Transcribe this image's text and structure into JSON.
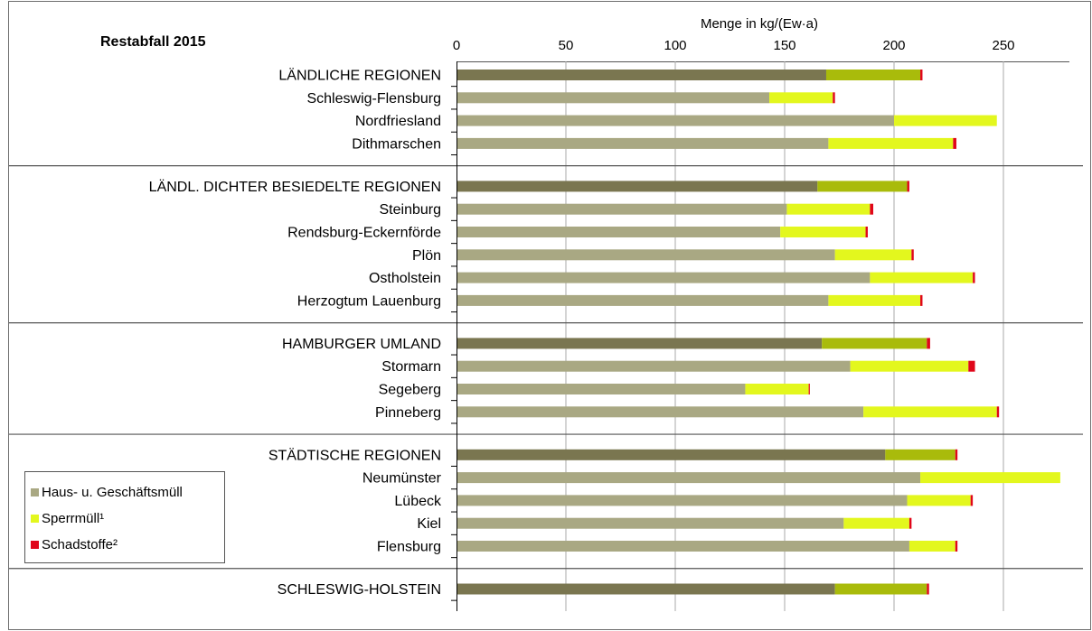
{
  "chart_data": {
    "type": "bar",
    "orientation": "horizontal",
    "stacked": true,
    "title": "Restabfall 2015",
    "xlabel": "Menge in kg/(Ew·a)",
    "xlim": [
      0,
      280
    ],
    "x_ticks": [
      0,
      50,
      100,
      150,
      200,
      250
    ],
    "grid": "vertical",
    "legend_position": "bottom-left",
    "legend": [
      {
        "name": "Haus- u. Geschäftsmüll",
        "color": "#a9a883"
      },
      {
        "name": "Sperrmüll¹",
        "color": "#e3f71e"
      },
      {
        "name": "Schadstoffe²",
        "color": "#e0061a"
      }
    ],
    "colors": {
      "aggregate_haus": "#7a7650",
      "aggregate_sperr": "#a9bb0b",
      "haus": "#a9a883",
      "sperr": "#e3f71e",
      "schad": "#e0061a"
    },
    "groups": [
      {
        "name": "LÄNDLICHE REGIONEN",
        "rows": [
          {
            "label": "LÄNDLICHE REGIONEN",
            "aggregate": true,
            "values": [
              169,
              43,
              1
            ]
          },
          {
            "label": "Schleswig-Flensburg",
            "aggregate": false,
            "values": [
              143,
              29,
              1
            ]
          },
          {
            "label": "Nordfriesland",
            "aggregate": false,
            "values": [
              200,
              47,
              0
            ]
          },
          {
            "label": "Dithmarschen",
            "aggregate": false,
            "values": [
              170,
              57,
              1.5
            ]
          }
        ]
      },
      {
        "name": "LÄNDL. DICHTER BESIEDELTE REGIONEN",
        "rows": [
          {
            "label": "LÄNDL. DICHTER BESIEDELTE REGIONEN",
            "aggregate": true,
            "values": [
              165,
              41,
              1
            ]
          },
          {
            "label": "Steinburg",
            "aggregate": false,
            "values": [
              151,
              38,
              1.5
            ]
          },
          {
            "label": "Rendsburg-Eckernförde",
            "aggregate": false,
            "values": [
              148,
              39,
              1
            ]
          },
          {
            "label": "Plön",
            "aggregate": false,
            "values": [
              173,
              35,
              1
            ]
          },
          {
            "label": "Ostholstein",
            "aggregate": false,
            "values": [
              189,
              47,
              1
            ]
          },
          {
            "label": "Herzogtum Lauenburg",
            "aggregate": false,
            "values": [
              170,
              42,
              1
            ]
          }
        ]
      },
      {
        "name": "HAMBURGER UMLAND",
        "rows": [
          {
            "label": "HAMBURGER UMLAND",
            "aggregate": true,
            "values": [
              167,
              48,
              1.5
            ]
          },
          {
            "label": "Stormarn",
            "aggregate": false,
            "values": [
              180,
              54,
              3
            ]
          },
          {
            "label": "Segeberg",
            "aggregate": false,
            "values": [
              132,
              29,
              0.5
            ]
          },
          {
            "label": "Pinneberg",
            "aggregate": false,
            "values": [
              186,
              61,
              1
            ]
          }
        ]
      },
      {
        "name": "STÄDTISCHE REGIONEN",
        "rows": [
          {
            "label": "STÄDTISCHE REGIONEN",
            "aggregate": true,
            "values": [
              196,
              32,
              1
            ]
          },
          {
            "label": "Neumünster",
            "aggregate": false,
            "values": [
              212,
              64,
              0
            ]
          },
          {
            "label": "Lübeck",
            "aggregate": false,
            "values": [
              206,
              29,
              1
            ]
          },
          {
            "label": "Kiel",
            "aggregate": false,
            "values": [
              177,
              30,
              1
            ]
          },
          {
            "label": "Flensburg",
            "aggregate": false,
            "values": [
              207,
              21,
              1
            ]
          }
        ]
      },
      {
        "name": "SCHLESWIG-HOLSTEIN",
        "rows": [
          {
            "label": "SCHLESWIG-HOLSTEIN",
            "aggregate": true,
            "values": [
              173,
              42,
              1
            ]
          }
        ]
      }
    ]
  }
}
